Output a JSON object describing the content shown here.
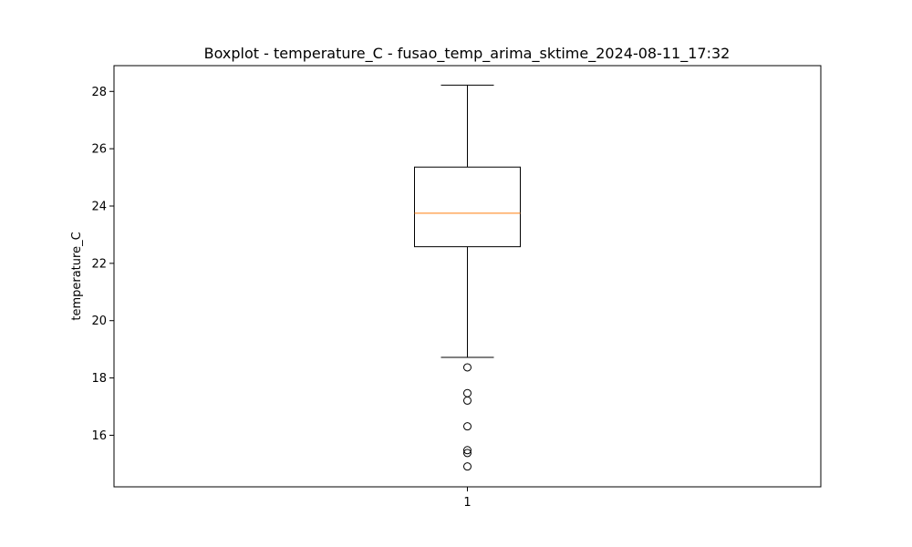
{
  "chart_data": {
    "type": "boxplot",
    "title": "Boxplot - temperature_C - fusao_temp_arima_sktime_2024-08-11_17:32",
    "xlabel": "",
    "ylabel": "temperature_C",
    "categories": [
      "1"
    ],
    "ylim": [
      14.2,
      28.9
    ],
    "yticks": [
      "16",
      "18",
      "20",
      "22",
      "24",
      "26",
      "28"
    ],
    "grid": false,
    "boxes": [
      {
        "category": "1",
        "whisker_low": 18.72,
        "q1": 22.58,
        "median": 23.75,
        "q3": 25.36,
        "whisker_high": 28.22,
        "outliers": [
          18.37,
          17.47,
          17.21,
          16.31,
          15.48,
          15.38,
          14.91
        ]
      }
    ],
    "colors": {
      "box": "#000000",
      "median": "#ff7f0e",
      "outlier": "#000000"
    }
  }
}
